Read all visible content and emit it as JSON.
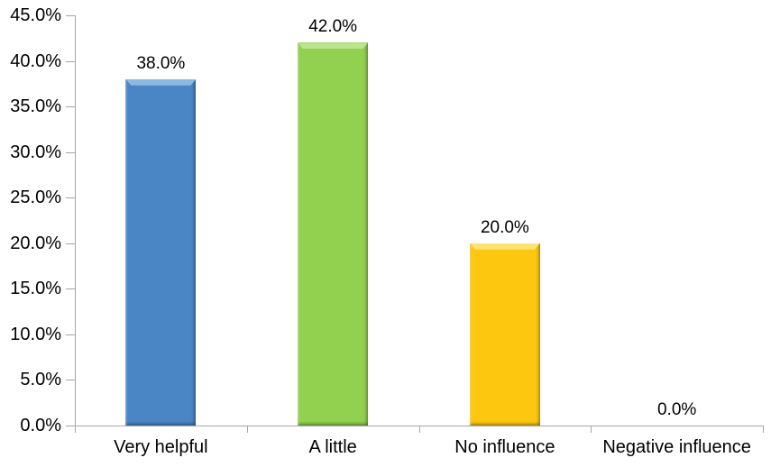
{
  "chart_data": {
    "type": "bar",
    "title": "",
    "xlabel": "",
    "ylabel": "",
    "categories": [
      "Very helpful",
      "A little",
      "No influence",
      "Negative influence"
    ],
    "values": [
      38.0,
      42.0,
      20.0,
      0.0
    ],
    "data_labels": [
      "38.0%",
      "42.0%",
      "20.0%",
      "0.0%"
    ],
    "ylim": [
      0,
      45
    ],
    "ytick_step": 5,
    "ytick_labels": [
      "45.0%",
      "40.0%",
      "35.0%",
      "30.0%",
      "25.0%",
      "20.0%",
      "15.0%",
      "10.0%",
      "5.0%",
      "0.0%"
    ],
    "grid": false,
    "legend_position": "none",
    "bar_style": "beveled-3d",
    "bar_colors": [
      {
        "fill": "#4A86C6",
        "highlight": "#8CB8E4"
      },
      {
        "fill": "#92D04F",
        "highlight": "#BCE48C"
      },
      {
        "fill": "#FEC70F",
        "highlight": "#FFE272"
      },
      {
        "fill": "#BFBFBF",
        "highlight": "#E0E0E0"
      }
    ]
  },
  "colors": {
    "axis": "#A6A6A6",
    "text": "#000000",
    "background": "#FFFFFF"
  }
}
